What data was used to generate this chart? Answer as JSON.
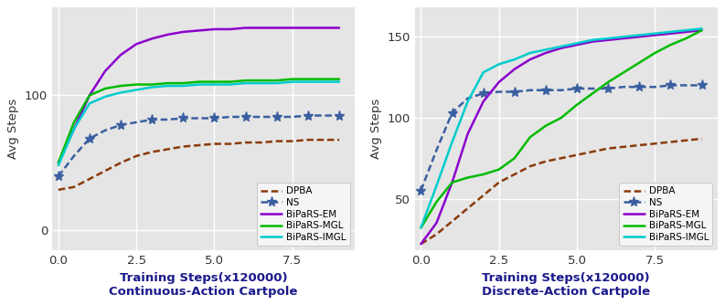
{
  "left_title": "Continuous-Action Cartpole",
  "right_title": "Discrete-Action Cartpole",
  "xlabel": "Training Steps(x120000)",
  "ylabel": "Avg Steps",
  "bg_color": "#e5e5e5",
  "fig_bg": "#ffffff",
  "x": [
    0.0,
    0.5,
    1.0,
    1.5,
    2.0,
    2.5,
    3.0,
    3.5,
    4.0,
    4.5,
    5.0,
    5.5,
    6.0,
    6.5,
    7.0,
    7.5,
    8.0,
    8.5,
    9.0
  ],
  "left": {
    "DPBA": [
      30,
      32,
      38,
      44,
      50,
      55,
      58,
      60,
      62,
      63,
      64,
      64,
      65,
      65,
      66,
      66,
      67,
      67,
      67
    ],
    "NS": [
      40,
      55,
      68,
      74,
      78,
      80,
      82,
      82,
      83,
      83,
      83,
      84,
      84,
      84,
      84,
      84,
      85,
      85,
      85
    ],
    "BiPaRS-EM": [
      50,
      75,
      100,
      118,
      130,
      138,
      142,
      145,
      147,
      148,
      149,
      149,
      150,
      150,
      150,
      150,
      150,
      150,
      150
    ],
    "BiPaRS-MGL": [
      50,
      80,
      100,
      105,
      107,
      108,
      108,
      109,
      109,
      110,
      110,
      110,
      111,
      111,
      111,
      112,
      112,
      112,
      112
    ],
    "BiPaRS-IMGL": [
      48,
      75,
      94,
      99,
      102,
      104,
      106,
      107,
      107,
      108,
      108,
      108,
      109,
      109,
      109,
      110,
      110,
      110,
      110
    ]
  },
  "right": {
    "DPBA": [
      22,
      28,
      36,
      44,
      52,
      60,
      65,
      70,
      73,
      75,
      77,
      79,
      81,
      82,
      83,
      84,
      85,
      86,
      87
    ],
    "NS": [
      55,
      80,
      103,
      112,
      115,
      116,
      116,
      117,
      117,
      117,
      118,
      118,
      118,
      119,
      119,
      119,
      120,
      120,
      120
    ],
    "BiPaRS-EM": [
      22,
      35,
      60,
      90,
      110,
      122,
      130,
      136,
      140,
      143,
      145,
      147,
      148,
      149,
      150,
      151,
      152,
      153,
      154
    ],
    "BiPaRS-MGL": [
      32,
      48,
      60,
      63,
      65,
      68,
      75,
      88,
      95,
      100,
      108,
      115,
      122,
      128,
      134,
      140,
      145,
      149,
      154
    ],
    "BiPaRS-IMGL": [
      32,
      58,
      85,
      110,
      128,
      133,
      136,
      140,
      142,
      144,
      146,
      148,
      149,
      150,
      151,
      152,
      153,
      154,
      155
    ]
  },
  "colors": {
    "DPBA": "#8B3A0A",
    "NS": "#3A5FA0",
    "BiPaRS-EM": "#8B00CC",
    "BiPaRS-MGL": "#00BB00",
    "BiPaRS-IMGL": "#00CCCC"
  },
  "left_ylim": [
    -15,
    165
  ],
  "right_ylim": [
    18,
    168
  ],
  "left_yticks": [
    0,
    100
  ],
  "right_yticks": [
    50,
    100,
    150
  ],
  "xticks": [
    0.0,
    2.5,
    5.0,
    7.5
  ],
  "xlim": [
    -0.2,
    9.5
  ],
  "legend_labels": [
    "DPBA",
    "NS",
    "BiPaRS-EM",
    "BiPaRS-MGL",
    "BiPaRS-IMGL"
  ]
}
